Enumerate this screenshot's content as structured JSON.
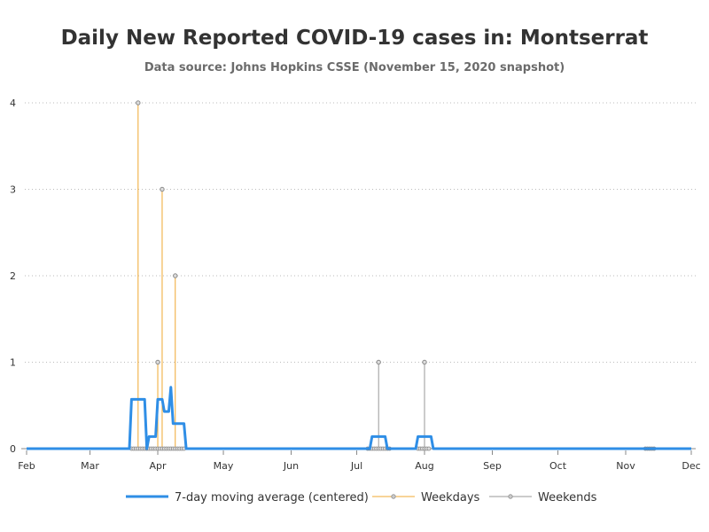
{
  "chart_data": {
    "type": "line",
    "title": "Daily New Reported COVID-19 cases in: Montserrat",
    "subtitle": "Data source: Johns Hopkins CSSE (November 15, 2020 snapshot)",
    "x_range": [
      "2020-02-01",
      "2020-12-01"
    ],
    "ylim": [
      0,
      4
    ],
    "y_ticks": [
      0,
      1,
      2,
      3,
      4
    ],
    "x_ticks": [
      {
        "date": "2020-02-01",
        "label": "Feb"
      },
      {
        "date": "2020-03-01",
        "label": "Mar"
      },
      {
        "date": "2020-04-01",
        "label": "Apr"
      },
      {
        "date": "2020-05-01",
        "label": "May"
      },
      {
        "date": "2020-06-01",
        "label": "Jun"
      },
      {
        "date": "2020-07-01",
        "label": "Jul"
      },
      {
        "date": "2020-08-01",
        "label": "Aug"
      },
      {
        "date": "2020-09-01",
        "label": "Sep"
      },
      {
        "date": "2020-10-01",
        "label": "Oct"
      },
      {
        "date": "2020-11-01",
        "label": "Nov"
      },
      {
        "date": "2020-12-01",
        "label": "Dec"
      }
    ],
    "grid": "horizontal dotted",
    "legend_position": "bottom",
    "series": [
      {
        "name": "7-day moving average (centered)",
        "kind": "line",
        "color": "#2f8ee6",
        "points": [
          [
            "2020-02-01",
            0
          ],
          [
            "2020-03-16",
            0
          ],
          [
            "2020-03-19",
            0
          ],
          [
            "2020-03-20",
            0.57
          ],
          [
            "2020-03-26",
            0.57
          ],
          [
            "2020-03-27",
            0
          ],
          [
            "2020-03-28",
            0.14
          ],
          [
            "2020-03-31",
            0.14
          ],
          [
            "2020-04-01",
            0.57
          ],
          [
            "2020-04-03",
            0.57
          ],
          [
            "2020-04-04",
            0.43
          ],
          [
            "2020-04-06",
            0.43
          ],
          [
            "2020-04-07",
            0.71
          ],
          [
            "2020-04-08",
            0.29
          ],
          [
            "2020-04-13",
            0.29
          ],
          [
            "2020-04-14",
            0
          ],
          [
            "2020-07-07",
            0
          ],
          [
            "2020-07-08",
            0.14
          ],
          [
            "2020-07-14",
            0.14
          ],
          [
            "2020-07-15",
            0
          ],
          [
            "2020-07-28",
            0
          ],
          [
            "2020-07-29",
            0.14
          ],
          [
            "2020-08-04",
            0.14
          ],
          [
            "2020-08-05",
            0
          ],
          [
            "2020-11-15",
            0
          ],
          [
            "2020-12-01",
            0
          ]
        ]
      },
      {
        "name": "Weekdays",
        "kind": "stem",
        "color": "#f0a830",
        "points": [
          [
            "2020-03-23",
            4
          ],
          [
            "2020-04-01",
            1
          ],
          [
            "2020-04-03",
            3
          ],
          [
            "2020-04-09",
            2
          ]
        ]
      },
      {
        "name": "Weekends",
        "kind": "stem",
        "color": "#999999",
        "points": [
          [
            "2020-07-11",
            1
          ],
          [
            "2020-08-01",
            1
          ]
        ]
      }
    ],
    "zero_markers": {
      "ranges": [
        [
          "2020-03-20",
          "2020-04-13"
        ],
        [
          "2020-07-06",
          "2020-07-16"
        ],
        [
          "2020-07-29",
          "2020-08-03"
        ],
        [
          "2020-11-10",
          "2020-11-14"
        ]
      ]
    }
  }
}
